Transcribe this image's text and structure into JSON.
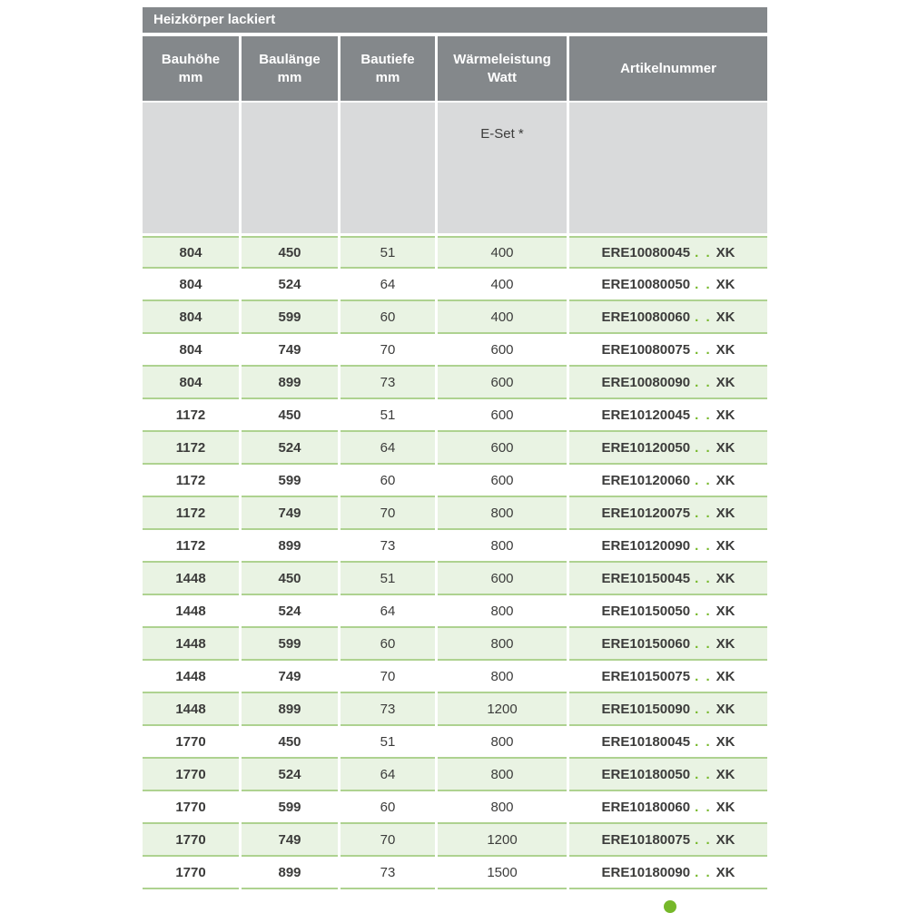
{
  "title": "Heizkörper lackiert",
  "header": {
    "columns": [
      {
        "line1": "Bauhöhe",
        "line2": "mm"
      },
      {
        "line1": "Baulänge",
        "line2": "mm"
      },
      {
        "line1": "Bautiefe",
        "line2": "mm"
      },
      {
        "line1": "Wärmeleistung",
        "line2": "Watt"
      },
      {
        "line1": "Artikelnummer",
        "line2": ""
      }
    ],
    "subheader_eset": "E-Set *"
  },
  "table": {
    "rows": [
      {
        "bauhoehe": "804",
        "baulaenge": "450",
        "bautiefe": "51",
        "watt": "400",
        "artikel": "ERE10080045",
        "dots": ". .",
        "suffix": "XK"
      },
      {
        "bauhoehe": "804",
        "baulaenge": "524",
        "bautiefe": "64",
        "watt": "400",
        "artikel": "ERE10080050",
        "dots": ". .",
        "suffix": "XK"
      },
      {
        "bauhoehe": "804",
        "baulaenge": "599",
        "bautiefe": "60",
        "watt": "400",
        "artikel": "ERE10080060",
        "dots": ". .",
        "suffix": "XK"
      },
      {
        "bauhoehe": "804",
        "baulaenge": "749",
        "bautiefe": "70",
        "watt": "600",
        "artikel": "ERE10080075",
        "dots": ". .",
        "suffix": "XK"
      },
      {
        "bauhoehe": "804",
        "baulaenge": "899",
        "bautiefe": "73",
        "watt": "600",
        "artikel": "ERE10080090",
        "dots": ". .",
        "suffix": "XK"
      },
      {
        "bauhoehe": "1172",
        "baulaenge": "450",
        "bautiefe": "51",
        "watt": "600",
        "artikel": "ERE10120045",
        "dots": ". .",
        "suffix": "XK"
      },
      {
        "bauhoehe": "1172",
        "baulaenge": "524",
        "bautiefe": "64",
        "watt": "600",
        "artikel": "ERE10120050",
        "dots": ". .",
        "suffix": "XK"
      },
      {
        "bauhoehe": "1172",
        "baulaenge": "599",
        "bautiefe": "60",
        "watt": "600",
        "artikel": "ERE10120060",
        "dots": ". .",
        "suffix": "XK"
      },
      {
        "bauhoehe": "1172",
        "baulaenge": "749",
        "bautiefe": "70",
        "watt": "800",
        "artikel": "ERE10120075",
        "dots": ". .",
        "suffix": "XK"
      },
      {
        "bauhoehe": "1172",
        "baulaenge": "899",
        "bautiefe": "73",
        "watt": "800",
        "artikel": "ERE10120090",
        "dots": ". .",
        "suffix": "XK"
      },
      {
        "bauhoehe": "1448",
        "baulaenge": "450",
        "bautiefe": "51",
        "watt": "600",
        "artikel": "ERE10150045",
        "dots": ". .",
        "suffix": "XK"
      },
      {
        "bauhoehe": "1448",
        "baulaenge": "524",
        "bautiefe": "64",
        "watt": "800",
        "artikel": "ERE10150050",
        "dots": ". .",
        "suffix": "XK"
      },
      {
        "bauhoehe": "1448",
        "baulaenge": "599",
        "bautiefe": "60",
        "watt": "800",
        "artikel": "ERE10150060",
        "dots": ". .",
        "suffix": "XK"
      },
      {
        "bauhoehe": "1448",
        "baulaenge": "749",
        "bautiefe": "70",
        "watt": "800",
        "artikel": "ERE10150075",
        "dots": ". .",
        "suffix": "XK"
      },
      {
        "bauhoehe": "1448",
        "baulaenge": "899",
        "bautiefe": "73",
        "watt": "1200",
        "artikel": "ERE10150090",
        "dots": ". .",
        "suffix": "XK"
      },
      {
        "bauhoehe": "1770",
        "baulaenge": "450",
        "bautiefe": "51",
        "watt": "800",
        "artikel": "ERE10180045",
        "dots": ". .",
        "suffix": "XK"
      },
      {
        "bauhoehe": "1770",
        "baulaenge": "524",
        "bautiefe": "64",
        "watt": "800",
        "artikel": "ERE10180050",
        "dots": ". .",
        "suffix": "XK"
      },
      {
        "bauhoehe": "1770",
        "baulaenge": "599",
        "bautiefe": "60",
        "watt": "800",
        "artikel": "ERE10180060",
        "dots": ". .",
        "suffix": "XK"
      },
      {
        "bauhoehe": "1770",
        "baulaenge": "749",
        "bautiefe": "70",
        "watt": "1200",
        "artikel": "ERE10180075",
        "dots": ". .",
        "suffix": "XK"
      },
      {
        "bauhoehe": "1770",
        "baulaenge": "899",
        "bautiefe": "73",
        "watt": "1500",
        "artikel": "ERE10180090",
        "dots": ". .",
        "suffix": "XK"
      }
    ]
  },
  "colors": {
    "header_bg": "#84888b",
    "subheader_bg": "#d9dadb",
    "row_green_bg": "#e9f3e3",
    "row_line_green": "#aed290",
    "accent_green": "#76b82a",
    "text": "#3c3c3b"
  }
}
